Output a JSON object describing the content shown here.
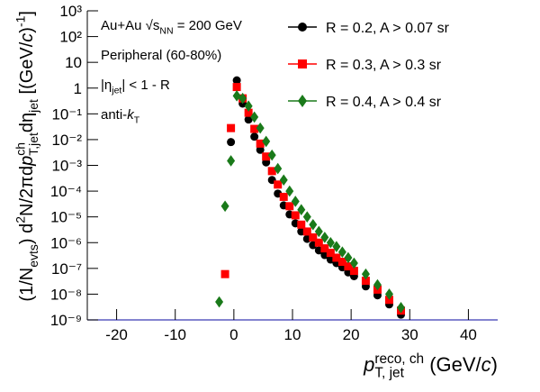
{
  "chart_data": {
    "type": "scatter",
    "log_y": true,
    "xlim": [
      -25,
      45
    ],
    "xticks": [
      -20,
      -10,
      0,
      10,
      20,
      30,
      40
    ],
    "ylim": [
      1e-09,
      1000
    ],
    "yticks": [
      {
        "value": 1000,
        "label": "10³"
      },
      {
        "value": 100,
        "label": "10²"
      },
      10,
      1,
      {
        "value": 0.1,
        "label": "10⁻¹"
      },
      {
        "value": 0.01,
        "label": "10⁻²"
      },
      {
        "value": 0.001,
        "label": "10⁻³"
      },
      {
        "value": 0.0001,
        "label": "10⁻⁴"
      },
      {
        "value": 1e-05,
        "label": "10⁻⁵"
      },
      {
        "value": 1e-06,
        "label": "10⁻⁶"
      },
      {
        "value": 1e-07,
        "label": "10⁻⁷"
      },
      {
        "value": 1e-08,
        "label": "10⁻⁸"
      },
      {
        "value": 1e-09,
        "label": "10⁻⁹"
      }
    ],
    "x_label": [
      {
        "text": "p",
        "italic": true
      },
      {
        "text": "reco, ch",
        "pos": "sup"
      },
      {
        "text": "T, jet",
        "pos": "sub",
        "stack": true
      },
      {
        "text": " (GeV/"
      },
      {
        "text": "c",
        "italic": true
      },
      {
        "text": ")"
      }
    ],
    "y_label": [
      {
        "text": "(1/N"
      },
      {
        "text": "evts",
        "pos": "sub"
      },
      {
        "text": ") d"
      },
      {
        "text": "2",
        "pos": "sup"
      },
      {
        "text": "N/2πd"
      },
      {
        "text": "p",
        "italic": true
      },
      {
        "text": "ch",
        "pos": "sup"
      },
      {
        "text": "T,jet",
        "pos": "sub",
        "stack": true
      },
      {
        "text": "dη"
      },
      {
        "text": "jet",
        "pos": "sub"
      },
      {
        "text": " [(GeV/"
      },
      {
        "text": "c",
        "italic": true
      },
      {
        "text": ")"
      },
      {
        "text": "-1",
        "pos": "sup"
      },
      {
        "text": "]"
      }
    ],
    "annotations": [
      [
        {
          "text": "Au+Au √"
        },
        {
          "text": "s"
        },
        {
          "text": "NN",
          "pos": "sub"
        },
        {
          "text": " = 200 GeV"
        }
      ],
      [
        {
          "text": "Peripheral (60-80%)"
        }
      ],
      [
        {
          "text": "|η"
        },
        {
          "text": "jet",
          "pos": "sub"
        },
        {
          "text": "| < 1 - R"
        }
      ],
      [
        {
          "text": "anti-"
        },
        {
          "text": "k",
          "italic": true
        },
        {
          "text": "T",
          "pos": "sub"
        }
      ]
    ],
    "legend": "top-right",
    "series": [
      {
        "name": "R = 0.2, A > 0.07 sr",
        "color": "#000000",
        "marker": "circle",
        "x": [
          -0.5,
          0.5,
          1.5,
          2.5,
          3.5,
          4.5,
          5.5,
          6.5,
          7.5,
          8.5,
          9.5,
          10.5,
          11.5,
          12.5,
          13.5,
          14.5,
          15.5,
          16.5,
          17.5,
          18.5,
          19.5,
          20.5,
          22.5,
          24.5,
          26.5,
          28.5
        ],
        "values": [
          0.008,
          2,
          0.25,
          0.06,
          0.013,
          0.004,
          0.0013,
          0.00027,
          8e-05,
          2.8e-05,
          1.25e-05,
          5.6e-06,
          2.7e-06,
          1.4e-06,
          8e-07,
          5e-07,
          3.3e-07,
          2.2e-07,
          1.6e-07,
          1.1e-07,
          7e-08,
          5e-08,
          2e-08,
          9e-09,
          4e-09,
          1.6e-09
        ]
      },
      {
        "name": "R = 0.3, A > 0.3 sr",
        "color": "#ff0000",
        "marker": "square",
        "x": [
          -1.5,
          -0.5,
          0.5,
          1.5,
          2.5,
          3.5,
          4.5,
          5.5,
          6.5,
          7.5,
          8.5,
          9.5,
          10.5,
          11.5,
          12.5,
          13.5,
          14.5,
          15.5,
          16.5,
          17.5,
          18.5,
          19.5,
          20.5,
          22.5,
          24.5,
          26.5,
          28.5
        ],
        "values": [
          6e-08,
          0.028,
          1.1,
          0.4,
          0.11,
          0.026,
          0.007,
          0.0022,
          0.0006,
          0.00018,
          6e-05,
          2.6e-05,
          1.15e-05,
          5e-06,
          2.7e-06,
          1.6e-06,
          1e-06,
          6e-07,
          4e-07,
          2.6e-07,
          1.8e-07,
          1.2e-07,
          8e-08,
          3.3e-08,
          1.5e-08,
          6e-09,
          2.3e-09
        ]
      },
      {
        "name": "R = 0.4, A > 0.4 sr",
        "color": "#1a7a1a",
        "marker": "diamond",
        "x": [
          -2.5,
          -1.5,
          -0.5,
          0.5,
          1.5,
          2.5,
          3.5,
          4.5,
          5.5,
          6.5,
          7.5,
          8.5,
          9.5,
          10.5,
          11.5,
          12.5,
          13.5,
          14.5,
          15.5,
          16.5,
          17.5,
          18.5,
          19.5,
          20.5,
          22.5,
          24.5,
          26.5,
          28.5
        ],
        "values": [
          5e-09,
          2.6e-05,
          0.0015,
          0.5,
          0.4,
          0.2,
          0.075,
          0.028,
          0.0085,
          0.0025,
          0.00075,
          0.00027,
          0.0001,
          4e-05,
          1.9e-05,
          1e-05,
          5e-06,
          2.7e-06,
          1.6e-06,
          1e-06,
          7e-07,
          4.3e-07,
          2.6e-07,
          1.6e-07,
          6e-08,
          2.3e-08,
          1e-08,
          3e-09
        ]
      }
    ]
  }
}
